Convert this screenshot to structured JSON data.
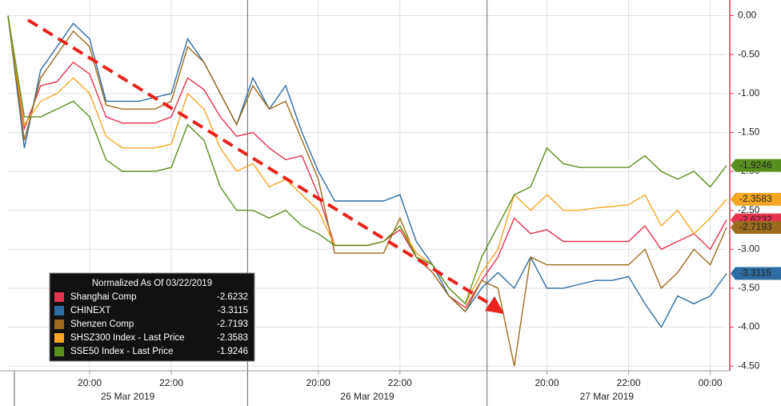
{
  "chart_data": {
    "type": "line",
    "legend_title": "Normalized As Of 03/22/2019",
    "categories": [
      null,
      null,
      null,
      null,
      null,
      "20:00",
      null,
      null,
      null,
      null,
      "22:00",
      null,
      null,
      null,
      null,
      null,
      null,
      null,
      null,
      "20:00",
      null,
      null,
      null,
      null,
      "22:00",
      null,
      null,
      null,
      null,
      null,
      null,
      null,
      null,
      "20:00",
      null,
      null,
      null,
      null,
      "22:00",
      null,
      null,
      null,
      null,
      "00:00",
      null
    ],
    "date_labels": [
      "25 Mar 2019",
      "26 Mar 2019",
      "27 Mar 2019"
    ],
    "series": [
      {
        "name": "Shanghai Comp",
        "color": "#e8334f",
        "values": [
          0,
          -1.45,
          -0.9,
          -0.85,
          -0.6,
          -0.75,
          -1.3,
          -1.38,
          -1.38,
          -1.38,
          -1.3,
          -0.8,
          -0.95,
          -1.3,
          -1.55,
          -1.5,
          -1.7,
          -1.85,
          -1.8,
          -2.3,
          -2.95,
          -2.95,
          -2.95,
          -2.9,
          -2.75,
          -3.1,
          -3.3,
          -3.6,
          -3.75,
          -3.4,
          -3.1,
          -2.6,
          -2.8,
          -2.75,
          -2.9,
          -2.9,
          -2.9,
          -2.9,
          -2.9,
          -2.7,
          -3.0,
          -2.9,
          -2.8,
          -3.0,
          -2.6232
        ]
      },
      {
        "name": "CHINEXT",
        "color": "#2e6da4",
        "values": [
          0,
          -1.7,
          -0.7,
          -0.4,
          -0.1,
          -0.3,
          -1.1,
          -1.1,
          -1.1,
          -1.05,
          -1.0,
          -0.3,
          -0.6,
          -1.0,
          -1.4,
          -0.8,
          -1.2,
          -0.9,
          -1.5,
          -2.0,
          -2.38,
          -2.38,
          -2.38,
          -2.38,
          -2.3,
          -2.9,
          -3.2,
          -3.6,
          -3.8,
          -3.5,
          -3.3,
          -3.5,
          -3.1,
          -3.5,
          -3.5,
          -3.45,
          -3.4,
          -3.4,
          -3.35,
          -3.7,
          -4.0,
          -3.6,
          -3.7,
          -3.6,
          -3.3115
        ]
      },
      {
        "name": "Shenzen Comp",
        "color": "#9c6b1e",
        "values": [
          0,
          -1.6,
          -0.8,
          -0.5,
          -0.2,
          -0.4,
          -1.15,
          -1.2,
          -1.2,
          -1.2,
          -1.1,
          -0.4,
          -0.6,
          -1.0,
          -1.4,
          -0.9,
          -1.2,
          -1.1,
          -1.6,
          -2.1,
          -3.05,
          -3.05,
          -3.05,
          -3.05,
          -2.6,
          -3.1,
          -3.3,
          -3.6,
          -3.8,
          -3.4,
          -3.5,
          -4.5,
          -3.1,
          -3.2,
          -3.2,
          -3.2,
          -3.2,
          -3.2,
          -3.2,
          -3.0,
          -3.5,
          -3.3,
          -3.0,
          -3.2,
          -2.7193
        ]
      },
      {
        "name": "SHSZ300 Index - Last Price",
        "color": "#f5a623",
        "values": [
          0,
          -1.4,
          -1.1,
          -1.0,
          -0.8,
          -1.0,
          -1.55,
          -1.7,
          -1.7,
          -1.7,
          -1.65,
          -1.0,
          -1.2,
          -1.7,
          -2.0,
          -1.9,
          -2.2,
          -2.1,
          -2.3,
          -2.5,
          -2.95,
          -2.95,
          -2.95,
          -2.9,
          -2.7,
          -3.05,
          -3.2,
          -3.5,
          -3.7,
          -3.3,
          -3.0,
          -2.3,
          -2.5,
          -2.3,
          -2.5,
          -2.5,
          -2.47,
          -2.45,
          -2.43,
          -2.3,
          -2.7,
          -2.5,
          -2.8,
          -2.6,
          -2.3583
        ]
      },
      {
        "name": "SSE50 Index - Last Price",
        "color": "#5a8f1e",
        "values": [
          0,
          -1.3,
          -1.3,
          -1.2,
          -1.1,
          -1.3,
          -1.85,
          -2.0,
          -2.0,
          -2.0,
          -1.95,
          -1.4,
          -1.6,
          -2.2,
          -2.5,
          -2.5,
          -2.6,
          -2.5,
          -2.7,
          -2.8,
          -2.95,
          -2.95,
          -2.95,
          -2.9,
          -2.7,
          -3.1,
          -3.2,
          -3.5,
          -3.7,
          -3.1,
          -2.7,
          -2.3,
          -2.2,
          -1.7,
          -1.9,
          -1.95,
          -1.95,
          -1.95,
          -1.95,
          -1.8,
          -2.0,
          -2.1,
          -2.0,
          -2.2,
          -1.9246
        ]
      }
    ],
    "ylim": [
      -4.56,
      0.2
    ],
    "yticks": [
      {
        "value": 0,
        "label": "0.00"
      },
      {
        "value": -0.5,
        "label": "-0.50"
      },
      {
        "value": -1,
        "label": "-1.00"
      },
      {
        "value": -1.5,
        "label": "-1.50"
      },
      {
        "value": -2,
        "label": "-2.00"
      },
      {
        "value": -2.5,
        "label": "-2.50"
      },
      {
        "value": -3,
        "label": "-3.00"
      },
      {
        "value": -3.5,
        "label": "-3.50"
      },
      {
        "value": -4,
        "label": "-4.00"
      },
      {
        "value": -4.5,
        "label": "-4.50"
      }
    ],
    "y_axis_color": "#e8334f",
    "grid": true
  }
}
